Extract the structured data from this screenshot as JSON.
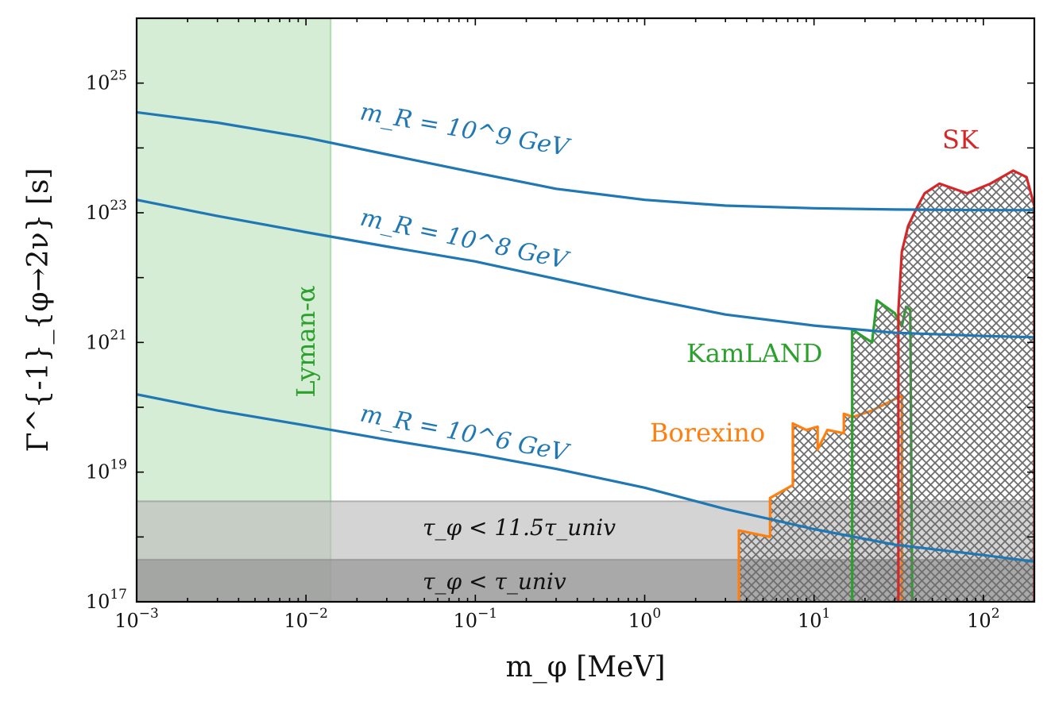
{
  "chart_data": {
    "type": "line",
    "title": "",
    "xlabel": "m_φ [MeV]",
    "ylabel": "Γ^{-1}_{φ→2ν} [s]",
    "xscale": "log",
    "yscale": "log",
    "xlim": [
      0.001,
      200
    ],
    "ylim": [
      1e+17,
      1e+26
    ],
    "x_tick_labels": [
      {
        "value": 0.001,
        "base": "10",
        "exp": "−3"
      },
      {
        "value": 0.01,
        "base": "10",
        "exp": "−2"
      },
      {
        "value": 0.1,
        "base": "10",
        "exp": "−1"
      },
      {
        "value": 1,
        "base": "10",
        "exp": "0"
      },
      {
        "value": 10,
        "base": "10",
        "exp": "1"
      },
      {
        "value": 100,
        "base": "10",
        "exp": "2"
      }
    ],
    "y_tick_labels": [
      {
        "value": 1e+17,
        "base": "10",
        "exp": "17"
      },
      {
        "value": 1e+19,
        "base": "10",
        "exp": "19"
      },
      {
        "value": 1e+21,
        "base": "10",
        "exp": "21"
      },
      {
        "value": 1e+23,
        "base": "10",
        "exp": "23"
      },
      {
        "value": 1e+25,
        "base": "10",
        "exp": "25"
      }
    ],
    "series": [
      {
        "name": "mR = 10^9 GeV",
        "label_text": "m_R = 10^9 GeV",
        "color": "#1f77b4",
        "x": [
          0.001,
          0.003,
          0.01,
          0.03,
          0.1,
          0.3,
          1,
          3,
          10,
          30,
          100,
          200
        ],
        "log10_y": [
          24.55,
          24.39,
          24.16,
          23.9,
          23.62,
          23.37,
          23.2,
          23.11,
          23.07,
          23.05,
          23.04,
          23.04
        ]
      },
      {
        "name": "mR = 10^8 GeV",
        "label_text": "m_R = 10^8 GeV",
        "color": "#1f77b4",
        "x": [
          0.001,
          0.003,
          0.01,
          0.03,
          0.1,
          0.3,
          1,
          3,
          10,
          30,
          100,
          200
        ],
        "log10_y": [
          23.2,
          22.95,
          22.7,
          22.48,
          22.25,
          21.98,
          21.68,
          21.43,
          21.26,
          21.15,
          21.1,
          21.08
        ]
      },
      {
        "name": "mR = 10^6 GeV",
        "label_text": "m_R = 10^6 GeV",
        "color": "#1f77b4",
        "x": [
          0.001,
          0.003,
          0.01,
          0.03,
          0.1,
          0.3,
          1,
          3,
          10,
          30,
          100,
          200
        ],
        "log10_y": [
          20.2,
          19.95,
          19.72,
          19.5,
          19.28,
          19.05,
          18.76,
          18.43,
          18.12,
          17.88,
          17.72,
          17.62
        ]
      }
    ],
    "exclusions": [
      {
        "name": "Lyman-α",
        "label_text": "Lyman-α",
        "color": "#2ca02c",
        "kind": "vertical_band",
        "x_range": [
          0.001,
          0.014
        ]
      },
      {
        "name": "τφ < 11.5 τuniv",
        "label_text": "τ_φ < 11.5τ_univ",
        "color": "#bdbdbd",
        "kind": "horizontal_band",
        "log10_y_range": [
          17,
          18.55
        ]
      },
      {
        "name": "τφ < τuniv",
        "label_text": "τ_φ < τ_univ",
        "color": "#8c8c8c",
        "kind": "horizontal_band",
        "log10_y_range": [
          17,
          17.65
        ]
      },
      {
        "name": "Borexino",
        "label_text": "Borexino",
        "color": "#ff7f0e",
        "kind": "region",
        "outline": [
          [
            3.6,
            17
          ],
          [
            3.6,
            18.1
          ],
          [
            5.5,
            18.0
          ],
          [
            5.5,
            18.6
          ],
          [
            7.5,
            18.8
          ],
          [
            7.5,
            19.75
          ],
          [
            9,
            19.65
          ],
          [
            10.5,
            19.7
          ],
          [
            10.5,
            19.35
          ],
          [
            12,
            19.65
          ],
          [
            15,
            19.6
          ],
          [
            15,
            19.9
          ],
          [
            17,
            19.85
          ],
          [
            22,
            19.95
          ],
          [
            33,
            20.18
          ],
          [
            33,
            17
          ]
        ]
      },
      {
        "name": "KamLAND",
        "label_text": "KamLAND",
        "color": "#2ca02c",
        "kind": "region",
        "outline": [
          [
            16.8,
            17
          ],
          [
            16.8,
            21.2
          ],
          [
            22,
            21.0
          ],
          [
            23.5,
            21.65
          ],
          [
            30,
            21.45
          ],
          [
            33,
            21.25
          ],
          [
            35,
            21.55
          ],
          [
            37,
            21.5
          ],
          [
            38,
            17
          ]
        ]
      },
      {
        "name": "SK",
        "label_text": "SK",
        "color": "#d62728",
        "kind": "region",
        "outline": [
          [
            31.5,
            17
          ],
          [
            31.5,
            21.5
          ],
          [
            33,
            22.4
          ],
          [
            36,
            22.8
          ],
          [
            40,
            23.05
          ],
          [
            45,
            23.3
          ],
          [
            55,
            23.45
          ],
          [
            80,
            23.3
          ],
          [
            110,
            23.45
          ],
          [
            150,
            23.65
          ],
          [
            180,
            23.55
          ],
          [
            200,
            23.1
          ],
          [
            200,
            17
          ]
        ]
      }
    ]
  }
}
